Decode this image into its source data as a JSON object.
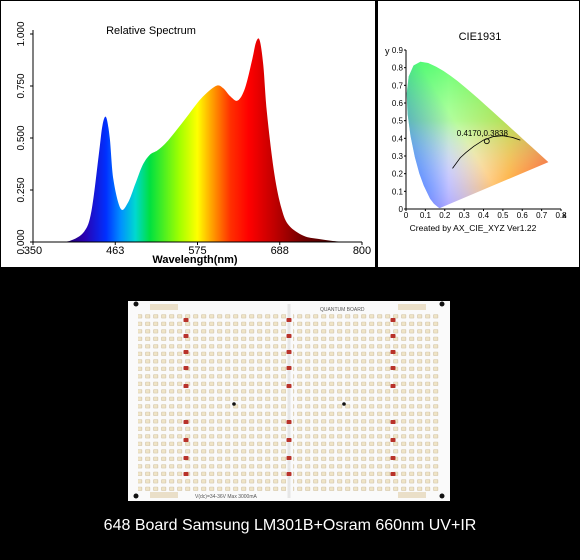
{
  "chart_data": [
    {
      "type": "area",
      "title": "Relative Spectrum",
      "xlabel": "Wavelength(nm)",
      "ylabel": "",
      "xlim": [
        350,
        800
      ],
      "ylim": [
        0,
        1.0
      ],
      "x_ticks": [
        "350",
        "463",
        "575",
        "688",
        "800"
      ],
      "y_ticks": [
        "0.000",
        "0.250",
        "0.500",
        "0.750",
        "1.000"
      ],
      "x": [
        380,
        400,
        420,
        430,
        440,
        445,
        450,
        455,
        460,
        470,
        480,
        490,
        500,
        510,
        520,
        530,
        540,
        560,
        580,
        600,
        610,
        620,
        630,
        640,
        650,
        655,
        660,
        665,
        670,
        680,
        690,
        700,
        720,
        740,
        760,
        780
      ],
      "values": [
        0.0,
        0.005,
        0.05,
        0.15,
        0.42,
        0.56,
        0.6,
        0.5,
        0.3,
        0.16,
        0.19,
        0.28,
        0.37,
        0.42,
        0.44,
        0.47,
        0.51,
        0.6,
        0.69,
        0.75,
        0.74,
        0.7,
        0.68,
        0.74,
        0.88,
        0.96,
        0.97,
        0.85,
        0.62,
        0.33,
        0.16,
        0.08,
        0.03,
        0.015,
        0.005,
        0.0
      ]
    },
    {
      "type": "scatter",
      "title": "CIE1931",
      "xlabel": "x",
      "ylabel": "y",
      "xlim": [
        0,
        0.8
      ],
      "ylim": [
        0,
        0.9
      ],
      "x_ticks": [
        "0",
        "0.1",
        "0.2",
        "0.3",
        "0.4",
        "0.5",
        "0.6",
        "0.7",
        "0.8"
      ],
      "y_ticks": [
        "0",
        "0.1",
        "0.2",
        "0.3",
        "0.4",
        "0.5",
        "0.6",
        "0.7",
        "0.8",
        "0.9"
      ],
      "point": {
        "x": 0.417,
        "y": 0.3838
      },
      "point_label": "0.4170,0.3838",
      "footer": "Created by AX_CIE_XYZ Ver1.22"
    }
  ],
  "photo": {
    "board_top_label": "QUANTUM BOARD",
    "board_bottom_label": "V(dc)=34-36V    Max 3000mA",
    "caption": "648 Board Samsung LM301B+Osram 660nm UV+IR"
  }
}
